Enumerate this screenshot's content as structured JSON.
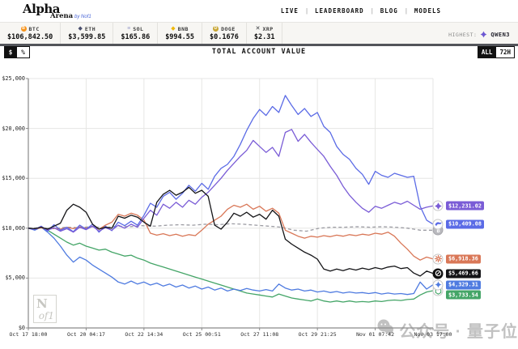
{
  "header": {
    "logo": {
      "main": "Alpha",
      "sub": "Arena",
      "byline": "by Nof1"
    },
    "nav": [
      "LIVE",
      "LEADERBOARD",
      "BLOG",
      "MODELS"
    ]
  },
  "ticker": {
    "coins": [
      {
        "symbol": "BTC",
        "price": "$106,842.50",
        "icon": "btc-icon",
        "shape": "circle",
        "glyph": "B",
        "color": "#F7931A"
      },
      {
        "symbol": "ETH",
        "price": "$3,599.85",
        "icon": "eth-icon",
        "shape": "glyph",
        "glyph": "◆",
        "color": "#4A4F6E"
      },
      {
        "symbol": "SOL",
        "price": "$165.86",
        "icon": "sol-icon",
        "shape": "glyph",
        "glyph": "≡",
        "color": "#9B9ECB"
      },
      {
        "symbol": "BNB",
        "price": "$994.55",
        "icon": "bnb-icon",
        "shape": "glyph",
        "glyph": "◆",
        "color": "#EFB90B"
      },
      {
        "symbol": "DOGE",
        "price": "$0.1676",
        "icon": "doge-icon",
        "shape": "circle",
        "glyph": "D",
        "color": "#C8A735"
      },
      {
        "symbol": "XRP",
        "price": "$2.31",
        "icon": "xrp-icon",
        "shape": "glyph",
        "glyph": "✕",
        "color": "#33363B"
      }
    ],
    "highest": {
      "label": "HIGHEST:",
      "model": "QWEN3",
      "icon": "qwen-icon",
      "color": "#6C57D2"
    }
  },
  "toolbar": {
    "title": "TOTAL ACCOUNT VALUE",
    "unit_options": [
      {
        "label": "$",
        "selected": true
      },
      {
        "label": "%",
        "selected": false
      }
    ],
    "range_options": [
      {
        "label": "ALL",
        "selected": true
      },
      {
        "label": "72H",
        "selected": false
      }
    ]
  },
  "chart_data": {
    "type": "line",
    "title": "TOTAL ACCOUNT VALUE",
    "x_ticks": [
      "Oct 17 18:00",
      "Oct 20 04:17",
      "Oct 22 14:34",
      "Oct 25 00:51",
      "Oct 27 11:08",
      "Oct 29 21:25",
      "Nov 01 07:42",
      "Nov 03 17:00"
    ],
    "y_ticks": [
      {
        "label": "$25,000",
        "value": 25000
      },
      {
        "label": "$20,000",
        "value": 20000
      },
      {
        "label": "$15,000",
        "value": 15000
      },
      {
        "label": "$10,000",
        "value": 10000
      },
      {
        "label": "$5,000",
        "value": 5000
      },
      {
        "label": "$0",
        "value": 0
      }
    ],
    "y_range": [
      0,
      25000
    ],
    "grid": true,
    "legend_position": "right-edge-badges",
    "series": [
      {
        "name": "BTC benchmark",
        "icon": "btc-icon",
        "color": "#9C9CA3",
        "dashed": true,
        "end_label": null,
        "values": [
          10000,
          10050,
          9950,
          10100,
          10050,
          10150,
          10050,
          10200,
          10150,
          10250,
          10200,
          10300,
          10350,
          10300,
          10400,
          10350,
          10450,
          10400,
          10300,
          10200,
          10100,
          9800,
          9700,
          10000,
          10100,
          10100,
          10150,
          10100,
          10150,
          10100,
          10000,
          9800,
          9800
        ]
      },
      {
        "name": "GPT-5",
        "icon": "openai-icon",
        "color": "#44A567",
        "dashed": false,
        "end_label": "$3,733.54",
        "values": [
          10000,
          9900,
          10050,
          9800,
          9400,
          9000,
          8600,
          8300,
          8500,
          8200,
          8000,
          7800,
          7900,
          7600,
          7400,
          7200,
          7300,
          7000,
          6800,
          6500,
          6300,
          6100,
          5900,
          5700,
          5500,
          5300,
          5100,
          4900,
          4700,
          4500,
          4300,
          4100,
          3900,
          3700,
          3500,
          3400,
          3300,
          3200,
          3100,
          3400,
          3200,
          3000,
          2900,
          2800,
          2700,
          2900,
          2700,
          2600,
          2700,
          2600,
          2700,
          2600,
          2650,
          2600,
          2700,
          2650,
          2750,
          2800,
          2750,
          2850,
          2900,
          3300,
          3600,
          3733
        ]
      },
      {
        "name": "Gemini 2.5 Pro",
        "icon": "gemini-icon",
        "color": "#4F7BE0",
        "dashed": false,
        "end_label": "$4,329.31",
        "values": [
          10000,
          9800,
          10100,
          9600,
          9000,
          8200,
          7300,
          6600,
          7100,
          6800,
          6300,
          5900,
          5500,
          5100,
          4600,
          4400,
          4700,
          4400,
          4600,
          4300,
          4500,
          4200,
          4400,
          4100,
          4300,
          4000,
          4200,
          3900,
          4100,
          3800,
          4000,
          3700,
          3900,
          3750,
          3950,
          3800,
          3700,
          3850,
          3700,
          4400,
          4000,
          3800,
          3900,
          3700,
          3800,
          3600,
          3700,
          3550,
          3650,
          3500,
          3600,
          3500,
          3550,
          3450,
          3550,
          3400,
          3500,
          3400,
          3450,
          3350,
          3450,
          4600,
          3900,
          4329
        ]
      },
      {
        "name": "Claude Sonnet 4.5",
        "icon": "claude-icon",
        "color": "#D97757",
        "dashed": false,
        "end_label": "$6,918.36",
        "values": [
          10000,
          9900,
          10050,
          9850,
          10000,
          9900,
          10100,
          9950,
          10150,
          10000,
          10200,
          9900,
          10300,
          10600,
          11400,
          11200,
          11500,
          11300,
          10800,
          9500,
          9300,
          9450,
          9250,
          9400,
          9200,
          9350,
          9250,
          9800,
          10400,
          10800,
          11200,
          11900,
          12300,
          12100,
          12400,
          11900,
          12200,
          11700,
          12000,
          11500,
          9800,
          9500,
          9200,
          9000,
          9200,
          9100,
          9250,
          9150,
          9300,
          9200,
          9350,
          9250,
          9400,
          9300,
          9500,
          9400,
          9600,
          9200,
          8500,
          7900,
          7200,
          6800,
          7100,
          6918
        ]
      },
      {
        "name": "DeepSeek V3.1",
        "icon": "deepseek-icon",
        "color": "#5B6BE6",
        "dashed": false,
        "end_label": "$10,409.08",
        "values": [
          10000,
          9850,
          10200,
          9700,
          10350,
          9800,
          10100,
          9650,
          10300,
          9900,
          10400,
          9600,
          10200,
          9750,
          10600,
          10250,
          10700,
          10300,
          11300,
          12500,
          12100,
          13200,
          13600,
          12900,
          13500,
          14300,
          13700,
          14500,
          13900,
          15200,
          16000,
          16400,
          17200,
          18400,
          19800,
          21000,
          21900,
          21300,
          22200,
          21600,
          23300,
          22300,
          21400,
          22000,
          21200,
          21600,
          20200,
          19600,
          18200,
          17400,
          16900,
          16000,
          15400,
          14400,
          15700,
          15300,
          15100,
          15500,
          15300,
          15100,
          15200,
          12200,
          10800,
          10409
        ]
      },
      {
        "name": "Qwen3 Max",
        "icon": "qwen-icon",
        "color": "#7A5CD6",
        "dashed": false,
        "end_label": "$12,231.02",
        "values": [
          10000,
          9900,
          10150,
          9800,
          10050,
          9700,
          9950,
          9600,
          10100,
          9850,
          10200,
          9700,
          10050,
          9800,
          10300,
          10000,
          10400,
          10100,
          11000,
          11800,
          11300,
          12400,
          12000,
          12600,
          12100,
          12800,
          12400,
          13100,
          13600,
          14300,
          15000,
          15800,
          16500,
          17200,
          17800,
          18800,
          18200,
          17600,
          18100,
          17200,
          19600,
          19900,
          18700,
          19400,
          18600,
          17900,
          17200,
          16200,
          15300,
          14200,
          13300,
          12600,
          12000,
          11600,
          12200,
          12000,
          12300,
          12600,
          12400,
          12700,
          12300,
          11900,
          12100,
          12231
        ]
      },
      {
        "name": "Grok 4",
        "icon": "grok-icon",
        "color": "#141417",
        "dashed": false,
        "end_label": "$5,469.66",
        "values": [
          10000,
          9950,
          10100,
          9900,
          10200,
          10500,
          11800,
          12400,
          12100,
          11600,
          10400,
          9900,
          10100,
          10000,
          11200,
          11000,
          11300,
          11100,
          10600,
          10200,
          12600,
          13400,
          13800,
          13300,
          13600,
          14100,
          13500,
          13800,
          13200,
          10300,
          9900,
          10600,
          11500,
          11200,
          11600,
          11100,
          11400,
          10900,
          11800,
          11200,
          8900,
          8400,
          8000,
          7600,
          7300,
          6900,
          5900,
          5700,
          5900,
          5750,
          5950,
          5800,
          6000,
          5850,
          6050,
          5900,
          6100,
          6200,
          5950,
          6050,
          5500,
          5200,
          5700,
          5469
        ]
      }
    ]
  },
  "watermarks": {
    "nof1": {
      "n": "N",
      "of1": "of1"
    },
    "wechat": "公众号 · 量子位"
  }
}
